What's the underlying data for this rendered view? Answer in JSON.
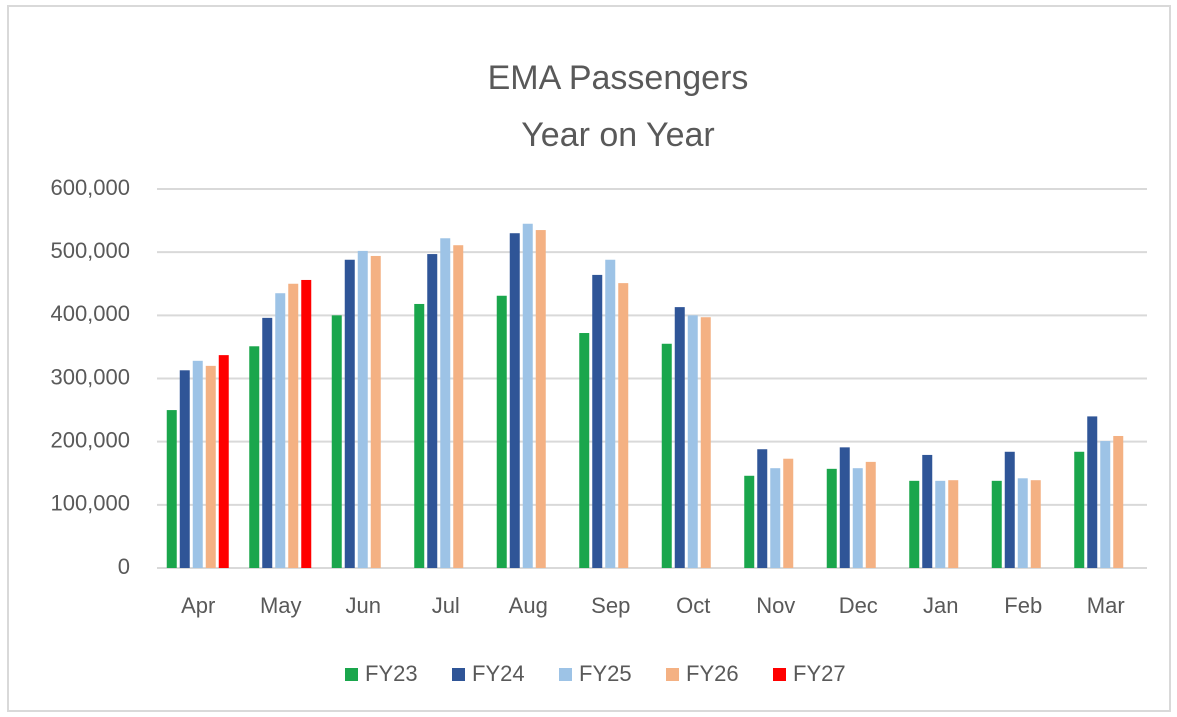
{
  "chart_data": {
    "type": "bar",
    "title": [
      "EMA Passengers",
      "Year on Year"
    ],
    "categories": [
      "Apr",
      "May",
      "Jun",
      "Jul",
      "Aug",
      "Sep",
      "Oct",
      "Nov",
      "Dec",
      "Jan",
      "Feb",
      "Mar"
    ],
    "series": [
      {
        "name": "FY23",
        "color": "#1aa64c",
        "values": [
          250000,
          351000,
          400000,
          418000,
          431000,
          372000,
          355000,
          146000,
          157000,
          138000,
          138000,
          184000
        ]
      },
      {
        "name": "FY24",
        "color": "#2f5597",
        "values": [
          313000,
          396000,
          488000,
          497000,
          530000,
          464000,
          413000,
          188000,
          191000,
          179000,
          184000,
          240000
        ]
      },
      {
        "name": "FY25",
        "color": "#9dc3e6",
        "values": [
          328000,
          435000,
          502000,
          522000,
          545000,
          488000,
          400000,
          158000,
          158000,
          138000,
          142000,
          201000
        ]
      },
      {
        "name": "FY26",
        "color": "#f4b183",
        "values": [
          320000,
          450000,
          494000,
          511000,
          535000,
          451000,
          397000,
          173000,
          168000,
          139000,
          139000,
          209000
        ]
      },
      {
        "name": "FY27",
        "color": "#ff0000",
        "values": [
          337000,
          456000,
          null,
          null,
          null,
          null,
          null,
          null,
          null,
          null,
          null,
          null
        ]
      }
    ],
    "ylim": [
      0,
      600000
    ],
    "yticks": [
      0,
      {
        "value": 100000,
        "label": "100,000"
      },
      {
        "value": 200000,
        "label": "200,000"
      },
      {
        "value": 300000,
        "label": "300,000"
      },
      {
        "value": 400000,
        "label": "400,000"
      },
      {
        "value": 500000,
        "label": "500,000"
      },
      {
        "value": 600000,
        "label": "600,000"
      }
    ],
    "grid": true,
    "legend": "bottom"
  }
}
